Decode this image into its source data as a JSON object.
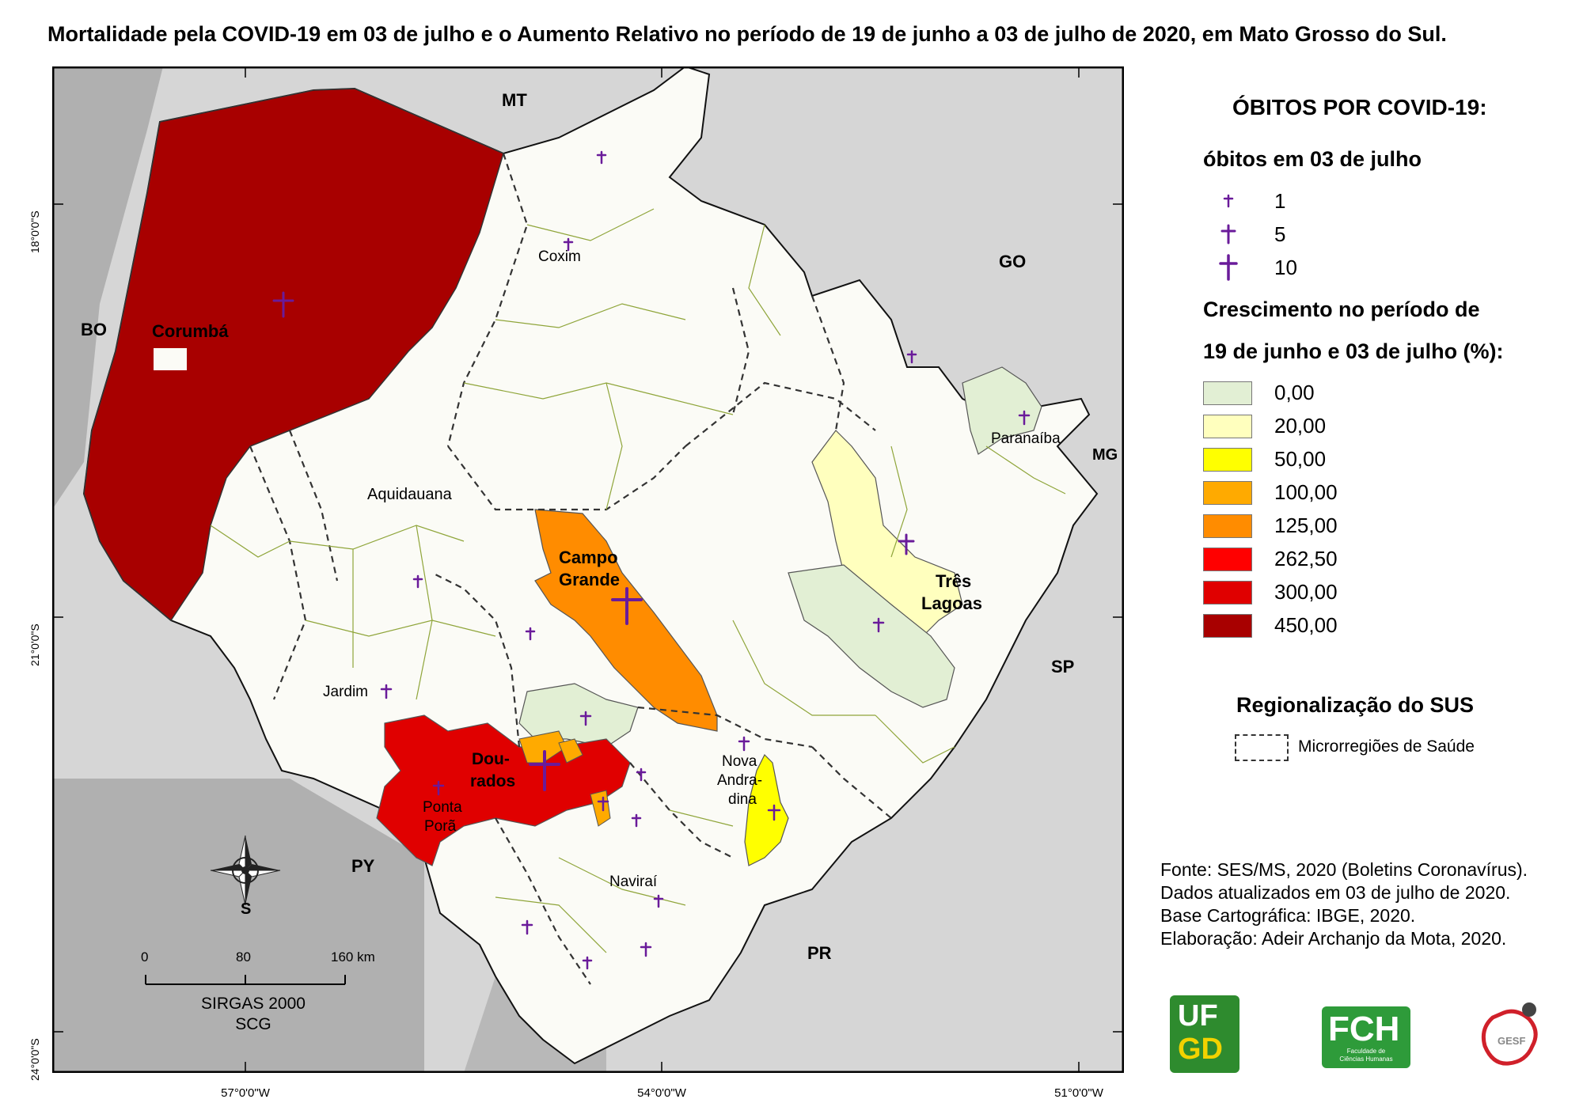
{
  "title": "Mortalidade pela COVID-19 em 03 de julho e o Aumento Relativo no período de 19 de junho a 03 de julho de 2020, em Mato Grosso do Sul.",
  "map": {
    "neighbors": {
      "mt": "MT",
      "go": "GO",
      "mg": "MG",
      "sp": "SP",
      "pr": "PR",
      "py": "PY",
      "bo": "BO"
    },
    "places": {
      "corumba": "Corumbá",
      "coxim": "Coxim",
      "aquidauana": "Aquidauana",
      "paranaiba": "Paranaíba",
      "campo_grande_1": "Campo",
      "campo_grande_2": "Grande",
      "tres_lagoas_1": "Três",
      "tres_lagoas_2": "Lagoas",
      "jardim": "Jardim",
      "dourados_1": "Dou-",
      "dourados_2": "rados",
      "ponta_pora_1": "Ponta",
      "ponta_pora_2": "Porã",
      "nova_andradina_1": "Nova",
      "nova_andradina_2": "Andra-",
      "nova_andradina_3": "dina",
      "navirai": "Naviraí"
    },
    "lat_ticks": [
      "18°0'0\"S",
      "21°0'0\"S",
      "24°0'0\"S"
    ],
    "lon_ticks": [
      "57°0'0\"W",
      "54°0'0\"W",
      "51°0'0\"W"
    ],
    "compass_letter": "S",
    "scale": {
      "labels": [
        "0",
        "80",
        "160 km"
      ],
      "datum": "SIRGAS 2000",
      "proj": "SCG"
    }
  },
  "legend": {
    "heading": "ÓBITOS POR COVID-19:",
    "deaths_heading": "óbitos em 03 de julho",
    "deaths": [
      {
        "label": "1"
      },
      {
        "label": "5"
      },
      {
        "label": "10"
      }
    ],
    "growth_heading_1": "Crescimento no período de",
    "growth_heading_2": "19 de junho e 03 de julho (%):",
    "classes": [
      {
        "label": "0,00",
        "color": "#e2efd4"
      },
      {
        "label": "20,00",
        "color": "#ffffbe"
      },
      {
        "label": "50,00",
        "color": "#ffff00"
      },
      {
        "label": "100,00",
        "color": "#ffaa00"
      },
      {
        "label": "125,00",
        "color": "#ff8c00"
      },
      {
        "label": "262,50",
        "color": "#ff0000"
      },
      {
        "label": "300,00",
        "color": "#e00000"
      },
      {
        "label": "450,00",
        "color": "#a80000"
      }
    ],
    "sus_heading": "Regionalização do SUS",
    "micro_label": "Microrregiões de Saúde"
  },
  "credits": [
    "Fonte: SES/MS, 2020 (Boletins Coronavírus).",
    "Dados atualizados em 03 de julho de 2020.",
    "Base Cartográfica: IBGE, 2020.",
    "Elaboração: Adeir Archanjo da Mota, 2020."
  ],
  "logos": {
    "ufgd_1": "UF",
    "ufgd_2": "GD",
    "fch": "FCH",
    "fch_sub_1": "Faculdade de",
    "fch_sub_2": "Ciências Humanas",
    "gesf": "GESF"
  },
  "colors": {
    "cross": "#6a1b9a",
    "sea_gray": "#b4b4b4",
    "ms_base": "#fbfbf6",
    "border_line": "#8fa53a"
  }
}
